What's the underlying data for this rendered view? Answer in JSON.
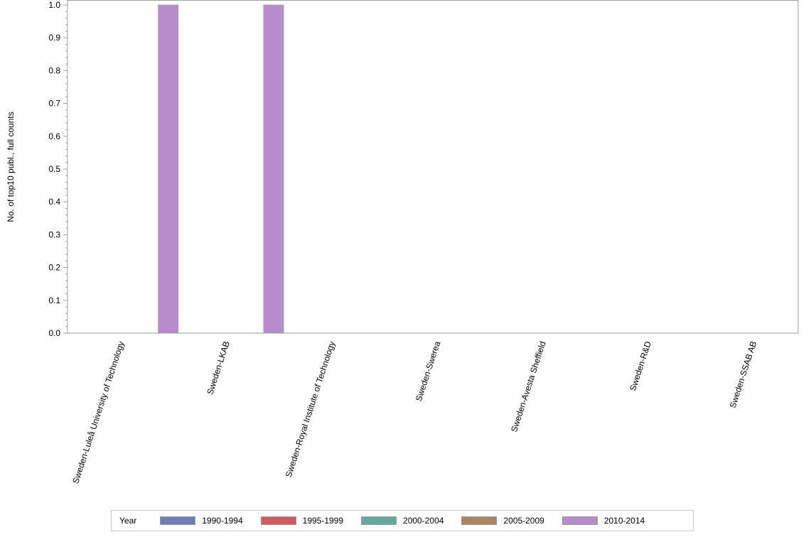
{
  "chart_data": {
    "type": "bar",
    "title": "",
    "xlabel": "",
    "ylabel": "No. of top10 publ., full counts",
    "ylim": [
      0,
      1.0
    ],
    "yticks": [
      "0.0",
      "0.1",
      "0.2",
      "0.3",
      "0.4",
      "0.5",
      "0.6",
      "0.7",
      "0.8",
      "0.9",
      "1.0"
    ],
    "grid": false,
    "legend_position": "bottom",
    "legend_title": "Year",
    "categories": [
      "Sweden-Luleå University of Technology",
      "Sweden-LKAB",
      "Sweden-Royal Institute of Technology",
      "Sweden-Swerea",
      "Sweden-Avesta Sheffield",
      "Sweden-R&D",
      "Sweden-SSAB AB"
    ],
    "series": [
      {
        "name": "1990-1994",
        "color": "#6f7fb5",
        "values": [
          0,
          0,
          0,
          0,
          0,
          0,
          0
        ]
      },
      {
        "name": "1995-1999",
        "color": "#d05b5b",
        "values": [
          0,
          0,
          0,
          0,
          0,
          0,
          0
        ]
      },
      {
        "name": "2000-2004",
        "color": "#66a89f",
        "values": [
          0,
          0,
          0,
          0,
          0,
          0,
          0
        ]
      },
      {
        "name": "2005-2009",
        "color": "#a8875f",
        "values": [
          0,
          0,
          0,
          0,
          0,
          0,
          0
        ]
      },
      {
        "name": "2010-2014",
        "color": "#b78bcc",
        "values": [
          1,
          1,
          0,
          0,
          0,
          0,
          0
        ]
      }
    ]
  },
  "legend": {
    "title": "Year",
    "items": [
      {
        "label": "1990-1994",
        "color": "#6f7fb5"
      },
      {
        "label": "1995-1999",
        "color": "#d05b5b"
      },
      {
        "label": "2000-2004",
        "color": "#66a89f"
      },
      {
        "label": "2005-2009",
        "color": "#a8875f"
      },
      {
        "label": "2010-2014",
        "color": "#b78bcc"
      }
    ]
  }
}
